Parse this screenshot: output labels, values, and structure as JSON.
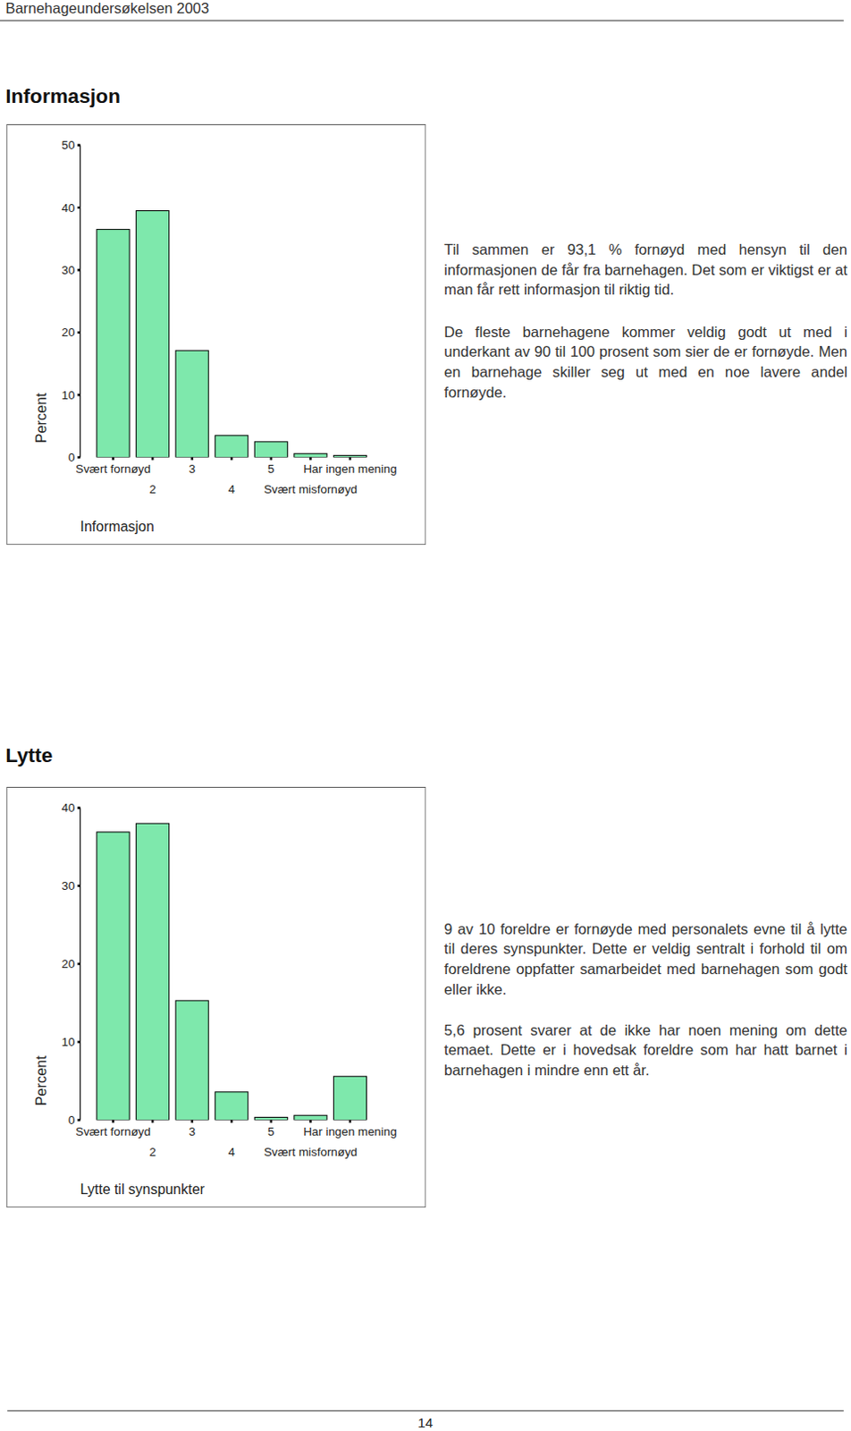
{
  "header": "Barnehageundersøkelsen 2003",
  "sections": [
    {
      "title": "Informasjon",
      "paragraphs": [
        "Til sammen er 93,1 % fornøyd med hensyn til den informasjonen de får fra barnehagen. Det som er viktigst er at man får rett informasjon til riktig tid.",
        "De fleste barnehagene kommer veldig godt ut med i underkant av 90 til 100 prosent som sier de er fornøyde. Men en barnehage skiller seg ut med en noe lavere andel fornøyde."
      ]
    },
    {
      "title": "Lytte",
      "paragraphs": [
        "9 av 10 foreldre er fornøyde med personalets evne til å lytte til deres synspunkter. Dette er veldig sentralt i forhold til om foreldrene oppfatter samarbeidet med barnehagen som godt eller ikke.",
        "5,6 prosent svarer at de ikke har noen mening om dette temaet. Dette er i hovedsak foreldre som har hatt barnet i barnehagen i mindre enn ett år."
      ]
    }
  ],
  "chart_data": [
    {
      "type": "bar",
      "x_label": "Informasjon",
      "y_label": "Percent",
      "categories": [
        "Svært fornøyd",
        "2",
        "3",
        "4",
        "5",
        "Svært misfornøyd",
        "Har ingen mening"
      ],
      "values": [
        36.5,
        39.5,
        17.1,
        3.5,
        2.5,
        0.6,
        0.3
      ],
      "color": "#7ee8ac",
      "ylim": [
        0,
        50
      ],
      "yticks": [
        0,
        10,
        20,
        30,
        40,
        50
      ],
      "grid": false
    },
    {
      "type": "bar",
      "x_label": "Lytte til synspunkter",
      "y_label": "Percent",
      "categories": [
        "Svært fornøyd",
        "2",
        "3",
        "4",
        "5",
        "Svært misfornøyd",
        "Har ingen mening"
      ],
      "values": [
        36.9,
        38.0,
        15.3,
        3.6,
        0.35,
        0.6,
        5.6
      ],
      "color": "#7ee8ac",
      "ylim": [
        0,
        40
      ],
      "yticks": [
        0,
        10,
        20,
        30,
        40
      ],
      "grid": false
    }
  ],
  "page_number": "14"
}
